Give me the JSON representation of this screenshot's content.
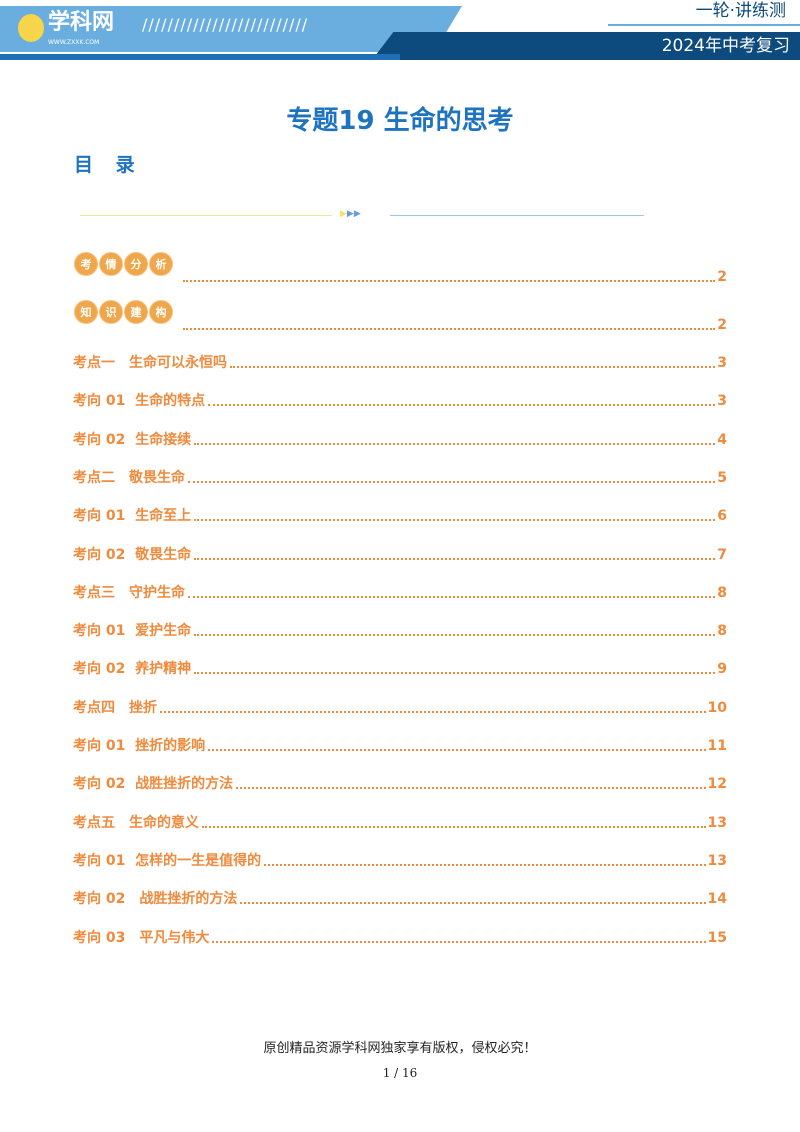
{
  "header": {
    "logo_text": "学科网",
    "logo_url": "WWW.ZXXK.COM",
    "slashes": "//////////////////////////",
    "series": "一轮·讲练测",
    "year": "2024年中考复习"
  },
  "title": "专题19 生命的思考",
  "toc_heading": "目 录",
  "badges": [
    {
      "chars": [
        "考",
        "情",
        "分",
        "析"
      ],
      "page": "2"
    },
    {
      "chars": [
        "知",
        "识",
        "建",
        "构"
      ],
      "page": "2"
    }
  ],
  "entries": [
    {
      "label": "考点一　生命可以永恒吗",
      "page": "3"
    },
    {
      "label": "考向 01  生命的特点",
      "page": "3"
    },
    {
      "label": "考向 02  生命接续",
      "page": "4"
    },
    {
      "label": "考点二　敬畏生命",
      "page": "5"
    },
    {
      "label": "考向 01  生命至上",
      "page": "6"
    },
    {
      "label": "考向 02  敬畏生命",
      "page": "7"
    },
    {
      "label": "考点三　守护生命",
      "page": "8"
    },
    {
      "label": "考向 01  爱护生命",
      "page": "8"
    },
    {
      "label": "考向 02  养护精神",
      "page": "9"
    },
    {
      "label": "考点四　挫折",
      "page": "10"
    },
    {
      "label": "考向 01  挫折的影响",
      "page": "11"
    },
    {
      "label": "考向 02  战胜挫折的方法",
      "page": "12"
    },
    {
      "label": "考点五　生命的意义",
      "page": "13"
    },
    {
      "label": "考向 01  怎样的一生是值得的",
      "page": "13"
    },
    {
      "label": "考向 02　战胜挫折的方法",
      "page": "14"
    },
    {
      "label": "考向 03　平凡与伟大",
      "page": "15"
    }
  ],
  "footer": "原创精品资源学科网独家享有版权，侵权必究！",
  "page_number": "1 / 16"
}
